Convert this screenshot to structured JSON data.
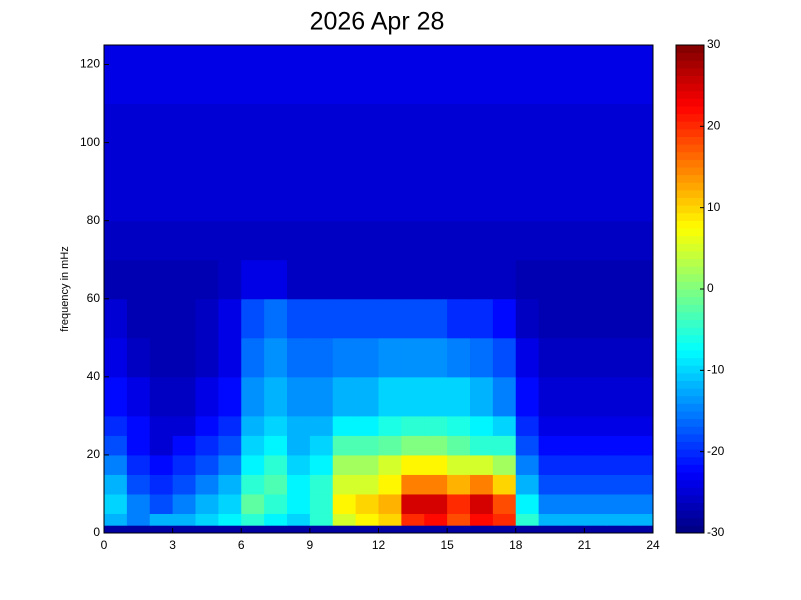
{
  "chart_data": {
    "type": "heatmap",
    "title": "2026 Apr 28",
    "y_label": "frequency in mHz",
    "xbins": [
      0,
      1,
      2,
      3,
      4,
      5,
      6,
      7,
      8,
      9,
      10,
      11,
      12,
      13,
      14,
      15,
      16,
      17,
      18,
      19,
      20,
      21,
      22,
      23,
      24
    ],
    "ybins": [
      0,
      2,
      5,
      10,
      15,
      20,
      25,
      30,
      40,
      50,
      60,
      70,
      80,
      95,
      110,
      125
    ],
    "values": [
      [
        -28,
        -28,
        -28,
        -28,
        -28,
        -28,
        -28,
        -28,
        -28,
        -28,
        -28,
        -28,
        -28,
        -28,
        -28,
        -28,
        -28,
        -28,
        -28,
        -28,
        -28,
        -28,
        -28,
        -28
      ],
      [
        -12,
        -15,
        -12,
        -12,
        -10,
        -8,
        -5,
        -8,
        -10,
        -5,
        5,
        8,
        10,
        20,
        22,
        18,
        22,
        20,
        -5,
        -12,
        -12,
        -12,
        -12,
        -12
      ],
      [
        -10,
        -15,
        -18,
        -15,
        -12,
        -10,
        -2,
        -5,
        -8,
        -5,
        8,
        10,
        12,
        25,
        25,
        20,
        25,
        18,
        -8,
        -15,
        -15,
        -15,
        -15,
        -15
      ],
      [
        -12,
        -18,
        -20,
        -18,
        -15,
        -12,
        -5,
        -3,
        -8,
        -5,
        5,
        5,
        8,
        15,
        15,
        12,
        15,
        10,
        -12,
        -18,
        -18,
        -18,
        -18,
        -18
      ],
      [
        -15,
        -20,
        -22,
        -20,
        -18,
        -15,
        -8,
        -5,
        -10,
        -8,
        2,
        2,
        5,
        8,
        8,
        5,
        5,
        2,
        -15,
        -20,
        -20,
        -20,
        -20,
        -20
      ],
      [
        -18,
        -22,
        -25,
        -22,
        -20,
        -18,
        -10,
        -8,
        -12,
        -10,
        -3,
        -3,
        -2,
        0,
        0,
        -2,
        -5,
        -5,
        -18,
        -22,
        -22,
        -22,
        -22,
        -22
      ],
      [
        -20,
        -22,
        -25,
        -25,
        -22,
        -20,
        -12,
        -10,
        -12,
        -12,
        -8,
        -8,
        -6,
        -5,
        -5,
        -6,
        -8,
        -10,
        -20,
        -24,
        -24,
        -24,
        -24,
        -24
      ],
      [
        -22,
        -24,
        -26,
        -26,
        -24,
        -22,
        -14,
        -12,
        -14,
        -14,
        -12,
        -12,
        -10,
        -10,
        -10,
        -10,
        -12,
        -15,
        -22,
        -25,
        -25,
        -25,
        -25,
        -25
      ],
      [
        -24,
        -26,
        -27,
        -27,
        -26,
        -24,
        -16,
        -14,
        -16,
        -16,
        -15,
        -15,
        -14,
        -14,
        -14,
        -15,
        -16,
        -18,
        -24,
        -26,
        -26,
        -26,
        -26,
        -26
      ],
      [
        -25,
        -27,
        -27,
        -27,
        -26,
        -24,
        -18,
        -16,
        -18,
        -18,
        -18,
        -18,
        -18,
        -18,
        -18,
        -20,
        -20,
        -22,
        -26,
        -27,
        -27,
        -27,
        -27,
        -27
      ],
      [
        -27,
        -27,
        -27,
        -27,
        -27,
        -26,
        -24,
        -24,
        -26,
        -26,
        -26,
        -26,
        -26,
        -26,
        -26,
        -26,
        -26,
        -26,
        -27,
        -27,
        -27,
        -27,
        -27,
        -27
      ],
      [
        -26,
        -26,
        -26,
        -26,
        -26,
        -26,
        -26,
        -26,
        -26,
        -26,
        -26,
        -26,
        -26,
        -26,
        -26,
        -26,
        -26,
        -26,
        -26,
        -26,
        -26,
        -26,
        -26,
        -26
      ],
      [
        -25,
        -25,
        -25,
        -25,
        -25,
        -25,
        -25,
        -25,
        -25,
        -25,
        -25,
        -25,
        -25,
        -25,
        -25,
        -25,
        -25,
        -25,
        -25,
        -25,
        -25,
        -25,
        -25,
        -25
      ],
      [
        -25,
        -25,
        -25,
        -25,
        -25,
        -25,
        -25,
        -25,
        -25,
        -25,
        -25,
        -25,
        -25,
        -25,
        -25,
        -25,
        -25,
        -25,
        -25,
        -25,
        -25,
        -25,
        -25,
        -25
      ],
      [
        -24,
        -24,
        -24,
        -24,
        -24,
        -24,
        -24,
        -24,
        -24,
        -24,
        -24,
        -24,
        -24,
        -24,
        -24,
        -24,
        -24,
        -24,
        -24,
        -24,
        -24,
        -24,
        -24,
        -24
      ]
    ],
    "xlim": [
      0,
      24
    ],
    "xticks": [
      0,
      3,
      6,
      9,
      12,
      15,
      18,
      21,
      24
    ],
    "ylim": [
      0,
      125
    ],
    "yticks": [
      0,
      20,
      40,
      60,
      80,
      100,
      120
    ],
    "clim": [
      -30,
      30
    ],
    "cticks": [
      -30,
      -20,
      -10,
      0,
      10,
      20,
      30
    ],
    "colormap": "jet"
  }
}
